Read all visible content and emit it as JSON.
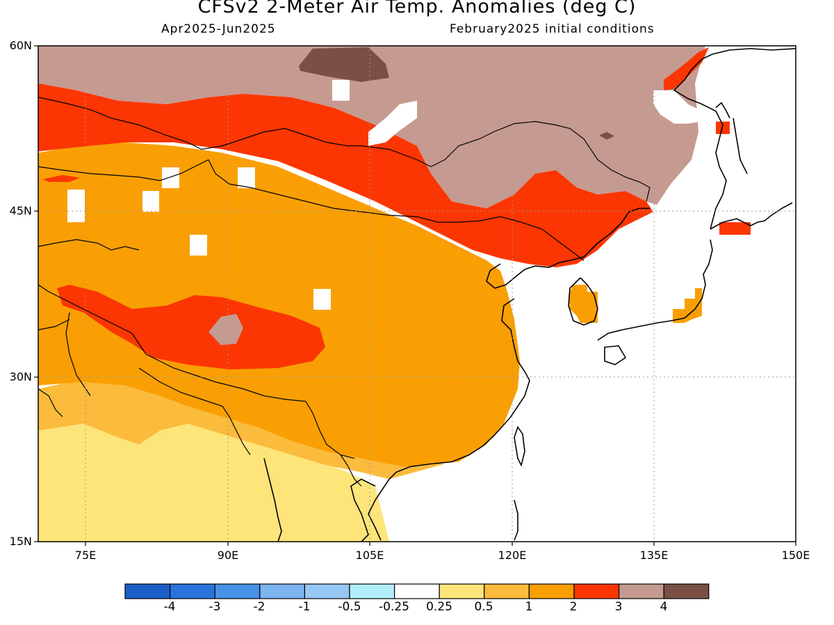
{
  "title": "CFSv2 2-Meter Air Temp. Anomalies (deg C)",
  "period": "Apr2025-Jun2025",
  "initial_conditions": "February2025 initial conditions",
  "axes": {
    "lat_labels": [
      "60N",
      "45N",
      "30N",
      "15N"
    ],
    "lon_labels": [
      "75E",
      "90E",
      "105E",
      "120E",
      "135E",
      "150E"
    ]
  },
  "colorbar": {
    "labels": [
      "-4",
      "-3",
      "-2",
      "-1",
      "-0.5",
      "-0.25",
      "0.25",
      "0.5",
      "1",
      "2",
      "3",
      "4"
    ],
    "colors": [
      "#1c5ec8",
      "#2a73dc",
      "#4592e8",
      "#7cb4f0",
      "#96c8f5",
      "#b2eefa",
      "#ffffff",
      "#fde57a",
      "#fbbb3c",
      "#f99f04",
      "#fb3602",
      "#c59a91",
      "#7a5045"
    ]
  },
  "colors": {
    "coast": "#000000",
    "grid": "#9a9a9a"
  }
}
